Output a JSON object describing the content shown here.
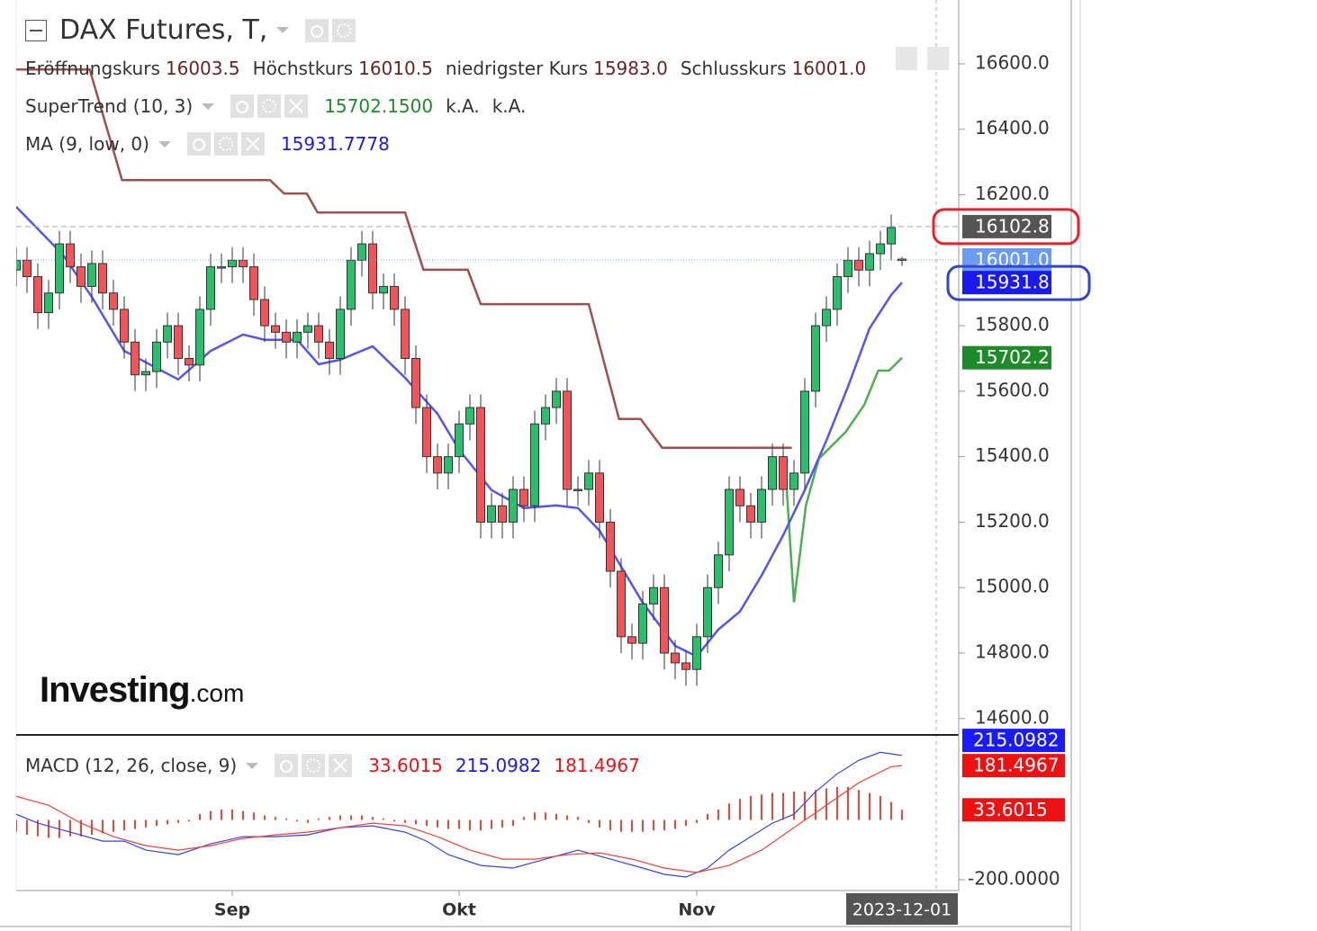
{
  "chart_data": {
    "type": "candlestick",
    "title": "DAX Futures, T,",
    "ohlc_legend": [
      {
        "label": "Eröffnungskurs",
        "value": "16003.5"
      },
      {
        "label": "Höchstkurs",
        "value": "16010.5"
      },
      {
        "label": "niedrigster Kurs",
        "value": "15983.0"
      },
      {
        "label": "Schlusskurs",
        "value": "16001.0"
      }
    ],
    "ohlc_value_color": "#6b2424",
    "up_color": "#2ebd6b",
    "down_color": "#f0555a",
    "open": [
      15970,
      16000,
      15950,
      15840,
      15900,
      16050,
      15980,
      15920,
      15990,
      15900,
      15850,
      15750,
      15650,
      15660,
      15750,
      15800,
      15700,
      15680,
      15850,
      15980,
      15980,
      16000,
      15980,
      15880,
      15800,
      15780,
      15750,
      15780,
      15800,
      15750,
      15700,
      15850,
      16000,
      16050,
      15900,
      15920,
      15850,
      15700,
      15550,
      15400,
      15350,
      15400,
      15500,
      15550,
      15200,
      15250,
      15200,
      15300,
      15250,
      15500,
      15550,
      15600,
      15300,
      15300,
      15350,
      15200,
      15050,
      14850,
      14830,
      14950,
      15000,
      14800,
      14770,
      14750,
      14850,
      15000,
      15100,
      15300,
      15250,
      15200,
      15300,
      15400,
      15300,
      15350,
      15600,
      15800,
      15850,
      15950,
      16000,
      15970,
      16020,
      16050,
      16003.5
    ],
    "high": [
      16040,
      16040,
      15990,
      15940,
      16090,
      16090,
      16020,
      16030,
      16030,
      15940,
      15890,
      15790,
      15700,
      15790,
      15840,
      15840,
      15740,
      15890,
      16020,
      16020,
      16040,
      16040,
      16020,
      15920,
      15840,
      15820,
      15820,
      15840,
      15840,
      15790,
      15890,
      16040,
      16090,
      16090,
      15960,
      15960,
      15890,
      15740,
      15590,
      15440,
      15440,
      15540,
      15590,
      15590,
      15290,
      15290,
      15340,
      15340,
      15540,
      15590,
      15640,
      15640,
      15340,
      15390,
      15390,
      15240,
      15090,
      14890,
      14990,
      15040,
      15040,
      14840,
      14810,
      14890,
      15040,
      15140,
      15340,
      15340,
      15290,
      15340,
      15440,
      15440,
      15390,
      15640,
      15840,
      15890,
      15990,
      16040,
      16040,
      16060,
      16090,
      16140,
      16010.5
    ],
    "low": [
      15920,
      15900,
      15790,
      15790,
      15850,
      15930,
      15870,
      15870,
      15850,
      15800,
      15700,
      15600,
      15600,
      15610,
      15700,
      15650,
      15630,
      15630,
      15800,
      15930,
      15930,
      15930,
      15830,
      15750,
      15730,
      15700,
      15700,
      15730,
      15700,
      15650,
      15650,
      15800,
      15950,
      15850,
      15850,
      15800,
      15650,
      15500,
      15350,
      15300,
      15300,
      15350,
      15450,
      15150,
      15150,
      15150,
      15150,
      15200,
      15200,
      15450,
      15500,
      15250,
      15250,
      15250,
      15150,
      15000,
      14800,
      14780,
      14780,
      14900,
      14750,
      14720,
      14700,
      14700,
      14800,
      14950,
      15050,
      15200,
      15150,
      15150,
      15250,
      15250,
      15250,
      15300,
      15550,
      15750,
      15800,
      15900,
      15920,
      15920,
      15970,
      16000,
      15983
    ],
    "close": [
      16000,
      15950,
      15840,
      15900,
      16050,
      15980,
      15920,
      15990,
      15900,
      15850,
      15750,
      15650,
      15660,
      15750,
      15800,
      15700,
      15680,
      15850,
      15980,
      15980,
      16000,
      15980,
      15880,
      15800,
      15780,
      15750,
      15780,
      15800,
      15750,
      15700,
      15850,
      16000,
      16050,
      15900,
      15920,
      15850,
      15700,
      15550,
      15400,
      15350,
      15400,
      15500,
      15550,
      15200,
      15250,
      15200,
      15300,
      15250,
      15500,
      15550,
      15600,
      15300,
      15300,
      15350,
      15200,
      15050,
      14850,
      14830,
      14950,
      15000,
      14800,
      14770,
      14750,
      14850,
      15000,
      15100,
      15300,
      15250,
      15200,
      15300,
      15400,
      15300,
      15350,
      15600,
      15800,
      15850,
      15950,
      16000,
      15970,
      16020,
      16050,
      16100,
      16001
    ],
    "xlim": [
      0,
      87.25
    ],
    "xticks": [
      {
        "value": 20,
        "label": "Sep"
      },
      {
        "value": 41,
        "label": "Okt"
      },
      {
        "value": 63,
        "label": "Nov"
      }
    ],
    "crosshair_label": {
      "x": 82,
      "label": "2023-12-01"
    },
    "ylim": [
      14550,
      16795
    ],
    "yticks": [
      {
        "value": 14600,
        "label": "14600.0"
      },
      {
        "value": 14800,
        "label": "14800.0"
      },
      {
        "value": 15000,
        "label": "15000.0"
      },
      {
        "value": 15200,
        "label": "15200.0"
      },
      {
        "value": 15400,
        "label": "15400.0"
      },
      {
        "value": 15600,
        "label": "15600.0"
      },
      {
        "value": 15800,
        "label": "15800.0"
      },
      {
        "value": 16200,
        "label": "16200.0"
      },
      {
        "value": 16400,
        "label": "16400.0"
      },
      {
        "value": 16600,
        "label": "16600.0"
      }
    ],
    "price_labels": [
      {
        "value": 16102.8,
        "label": "16102.8",
        "color": "#555555",
        "line": "dashed"
      },
      {
        "value": 16001,
        "label": "16001.0",
        "color": "#6b9af5",
        "line": "dotted"
      },
      {
        "value": 15931.8,
        "label": "15931.8",
        "color": "#1a1aee"
      },
      {
        "value": 15702.2,
        "label": "15702.2",
        "color": "#1f8a2a"
      }
    ],
    "supertrend": {
      "name": "SuperTrend (10, 3)",
      "value": "15702.1500",
      "value_color": "#1f8a2a",
      "extra": [
        "k.A.",
        "k.A."
      ],
      "upper": {
        "color": "#a0504c",
        "x": [
          0,
          6.8,
          9.8,
          23.5,
          24.8,
          26.9,
          27.9,
          36,
          37.7,
          41.8,
          43,
          53,
          55.8,
          57.8,
          59.8,
          71.8
        ],
        "values": [
          16583,
          16583,
          16245,
          16245,
          16204,
          16204,
          16146,
          16146,
          15971,
          15971,
          15866,
          15866,
          15515,
          15515,
          15427,
          15427
        ]
      },
      "lower": {
        "color": "#4caf50",
        "x": [
          71.2,
          72,
          73.1,
          74.3,
          76.8,
          78.5,
          79.8,
          80.8,
          82
        ],
        "values": [
          15366,
          14955,
          15250,
          15394,
          15476,
          15558,
          15663,
          15663,
          15702.2
        ]
      }
    },
    "ma": {
      "name": "MA (9, low, 0)",
      "value": "15931.7778",
      "value_color": "#1a1aee",
      "color": "#5555ee",
      "x": [
        0,
        4.3,
        7,
        10,
        15,
        18,
        21,
        23,
        26,
        28,
        30,
        33,
        36,
        39,
        41,
        44,
        47,
        50,
        52,
        54,
        56,
        58,
        61,
        63,
        65,
        67,
        69,
        71,
        73,
        75,
        77,
        79,
        81,
        82
      ],
      "values": [
        16163,
        16018,
        15888,
        15723,
        15636,
        15723,
        15773,
        15757,
        15757,
        15682,
        15696,
        15737,
        15641,
        15531,
        15421,
        15298,
        15243,
        15251,
        15243,
        15174,
        15064,
        14954,
        14822,
        14790,
        14872,
        14927,
        15037,
        15160,
        15298,
        15449,
        15614,
        15792,
        15894,
        15931.8
      ]
    },
    "macd": {
      "name": "MACD (12, 26, close, 9)",
      "legend_values": [
        {
          "value": "33.6015",
          "color": "#ee1111"
        },
        {
          "value": "215.0982",
          "color": "#1a1aee"
        },
        {
          "value": "181.4967",
          "color": "#ee1111"
        }
      ],
      "ylim": [
        -236,
        281
      ],
      "yticks": [
        {
          "value": -200,
          "label": "-200.0000"
        }
      ],
      "histogram": {
        "color": "#f44336",
        "values": [
          -40,
          -50,
          -55,
          -60,
          -60,
          -55,
          -55,
          -50,
          -45,
          -40,
          -35,
          -30,
          -25,
          -20,
          -15,
          -10,
          -5,
          20,
          30,
          35,
          35,
          30,
          25,
          15,
          10,
          5,
          -5,
          -10,
          5,
          10,
          15,
          15,
          15,
          10,
          5,
          -5,
          -10,
          -15,
          -20,
          -25,
          -30,
          -30,
          -35,
          -35,
          -30,
          -25,
          -20,
          10,
          25,
          25,
          20,
          15,
          10,
          -10,
          -25,
          -35,
          -40,
          -40,
          -40,
          -35,
          -35,
          -30,
          -20,
          -10,
          20,
          35,
          55,
          70,
          80,
          85,
          90,
          90,
          95,
          95,
          100,
          105,
          110,
          110,
          100,
          90,
          80,
          60,
          33.6015
        ]
      },
      "macd_line": {
        "color": "#3344ee",
        "x": [
          0,
          2,
          5,
          8,
          10,
          12,
          15,
          18,
          21,
          24,
          27,
          30,
          33,
          36,
          38,
          40,
          43,
          46,
          49,
          52,
          55,
          58,
          60,
          62,
          64,
          66,
          68,
          70,
          72,
          74,
          76,
          78,
          80,
          82
        ],
        "values": [
          19,
          -11,
          -41,
          -71,
          -71,
          -101,
          -116,
          -80,
          -56,
          -56,
          -50,
          -26,
          -20,
          -41,
          -71,
          -116,
          -152,
          -161,
          -131,
          -101,
          -131,
          -161,
          -182,
          -191,
          -161,
          -101,
          -56,
          -11,
          19,
          94,
          154,
          199,
          226,
          215.0982
        ]
      },
      "signal_line": {
        "color": "#f44336",
        "x": [
          0,
          3,
          6,
          9,
          12,
          15,
          18,
          21,
          24,
          27,
          30,
          33,
          36,
          39,
          42,
          45,
          48,
          51,
          54,
          57,
          60,
          63,
          66,
          69,
          72,
          75,
          78,
          81,
          82
        ],
        "values": [
          79,
          49,
          -11,
          -56,
          -86,
          -101,
          -86,
          -62,
          -50,
          -41,
          -26,
          -11,
          -20,
          -56,
          -101,
          -131,
          -131,
          -116,
          -110,
          -131,
          -161,
          -176,
          -152,
          -101,
          -26,
          49,
          124,
          178,
          181.4967
        ]
      },
      "price_labels": [
        {
          "value": 215.0982,
          "label": "215.0982",
          "color": "#1a1aff"
        },
        {
          "value": 181.4967,
          "label": "181.4967",
          "color": "#ee1111"
        },
        {
          "value": 33.6015,
          "label": "33.6015",
          "color": "#ee1111"
        }
      ]
    },
    "watermark": {
      "brand": "Investing",
      "suffix": ".com"
    }
  }
}
